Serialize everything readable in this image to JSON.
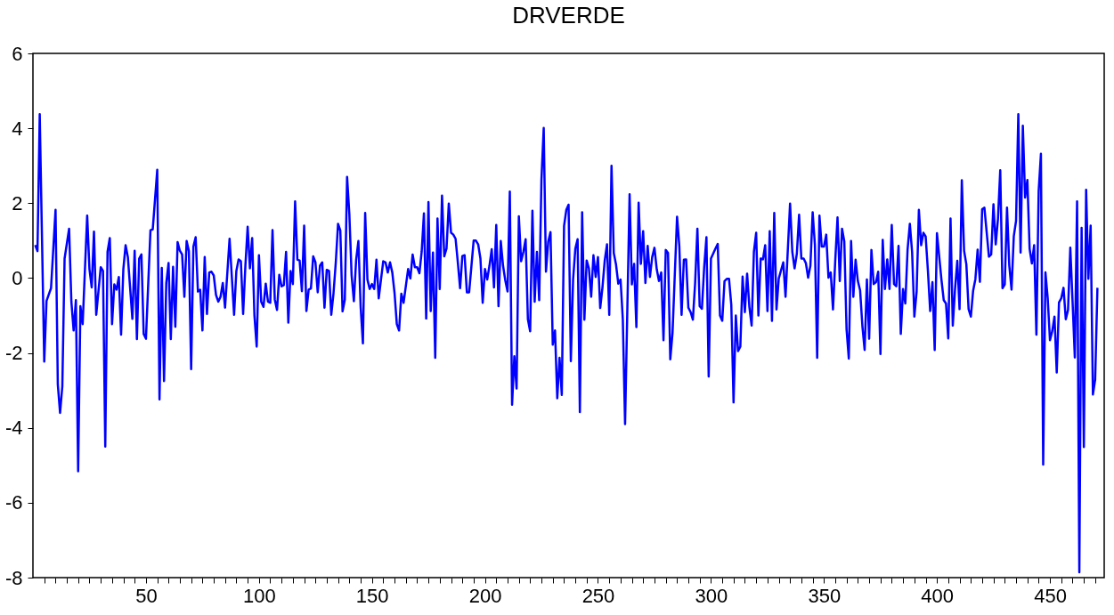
{
  "chart_data": {
    "type": "line",
    "title": "DRVERDE",
    "xlim": [
      0,
      474
    ],
    "ylim": [
      -8,
      6
    ],
    "yticks": [
      -8,
      -6,
      -4,
      -2,
      0,
      2,
      4,
      6
    ],
    "xticks": [
      {
        "value": 5,
        "label": null
      },
      {
        "value": 10,
        "label": null
      },
      {
        "value": 15,
        "label": null
      },
      {
        "value": 20,
        "label": null
      },
      {
        "value": 25,
        "label": null
      },
      {
        "value": 30,
        "label": null
      },
      {
        "value": 35,
        "label": null
      },
      {
        "value": 40,
        "label": null
      },
      {
        "value": 45,
        "label": null
      },
      50,
      {
        "value": 55,
        "label": null
      },
      {
        "value": 60,
        "label": null
      },
      {
        "value": 65,
        "label": null
      },
      {
        "value": 70,
        "label": null
      },
      {
        "value": 75,
        "label": null
      },
      {
        "value": 80,
        "label": null
      },
      {
        "value": 85,
        "label": null
      },
      {
        "value": 90,
        "label": null
      },
      {
        "value": 95,
        "label": null
      },
      100,
      {
        "value": 105,
        "label": null
      },
      {
        "value": 110,
        "label": null
      },
      {
        "value": 115,
        "label": null
      },
      {
        "value": 120,
        "label": null
      },
      {
        "value": 125,
        "label": null
      },
      {
        "value": 130,
        "label": null
      },
      {
        "value": 135,
        "label": null
      },
      {
        "value": 140,
        "label": null
      },
      {
        "value": 145,
        "label": null
      },
      150,
      {
        "value": 155,
        "label": null
      },
      {
        "value": 160,
        "label": null
      },
      {
        "value": 165,
        "label": null
      },
      {
        "value": 170,
        "label": null
      },
      {
        "value": 175,
        "label": null
      },
      {
        "value": 180,
        "label": null
      },
      {
        "value": 185,
        "label": null
      },
      {
        "value": 190,
        "label": null
      },
      {
        "value": 195,
        "label": null
      },
      200,
      {
        "value": 205,
        "label": null
      },
      {
        "value": 210,
        "label": null
      },
      {
        "value": 215,
        "label": null
      },
      {
        "value": 220,
        "label": null
      },
      {
        "value": 225,
        "label": null
      },
      {
        "value": 230,
        "label": null
      },
      {
        "value": 235,
        "label": null
      },
      {
        "value": 240,
        "label": null
      },
      {
        "value": 245,
        "label": null
      },
      250,
      {
        "value": 255,
        "label": null
      },
      {
        "value": 260,
        "label": null
      },
      {
        "value": 265,
        "label": null
      },
      {
        "value": 270,
        "label": null
      },
      {
        "value": 275,
        "label": null
      },
      {
        "value": 280,
        "label": null
      },
      {
        "value": 285,
        "label": null
      },
      {
        "value": 290,
        "label": null
      },
      {
        "value": 295,
        "label": null
      },
      300,
      {
        "value": 305,
        "label": null
      },
      {
        "value": 310,
        "label": null
      },
      {
        "value": 315,
        "label": null
      },
      {
        "value": 320,
        "label": null
      },
      {
        "value": 325,
        "label": null
      },
      {
        "value": 330,
        "label": null
      },
      {
        "value": 335,
        "label": null
      },
      {
        "value": 340,
        "label": null
      },
      {
        "value": 345,
        "label": null
      },
      350,
      {
        "value": 355,
        "label": null
      },
      {
        "value": 360,
        "label": null
      },
      {
        "value": 365,
        "label": null
      },
      {
        "value": 370,
        "label": null
      },
      {
        "value": 375,
        "label": null
      },
      {
        "value": 380,
        "label": null
      },
      {
        "value": 385,
        "label": null
      },
      {
        "value": 390,
        "label": null
      },
      {
        "value": 395,
        "label": null
      },
      400,
      {
        "value": 405,
        "label": null
      },
      {
        "value": 410,
        "label": null
      },
      {
        "value": 415,
        "label": null
      },
      {
        "value": 420,
        "label": null
      },
      {
        "value": 425,
        "label": null
      },
      {
        "value": 430,
        "label": null
      },
      {
        "value": 435,
        "label": null
      },
      {
        "value": 440,
        "label": null
      },
      {
        "value": 445,
        "label": null
      },
      450,
      {
        "value": 455,
        "label": null
      },
      {
        "value": 460,
        "label": null
      },
      {
        "value": 465,
        "label": null
      },
      {
        "value": 470,
        "label": null
      }
    ],
    "grid": false,
    "marker": "none",
    "line_style": "solid",
    "series": [
      {
        "color": "#0000ff",
        "x": [
          1,
          2,
          3,
          5,
          6,
          8,
          10,
          11,
          12,
          13,
          14,
          16,
          17,
          18,
          19,
          20,
          21,
          22,
          24,
          25,
          26,
          27,
          28,
          30,
          31,
          32,
          33,
          34,
          35,
          36,
          37,
          38,
          39,
          40,
          41,
          42,
          44,
          45,
          46,
          47,
          48,
          49,
          50,
          52,
          53,
          55,
          56,
          57,
          58,
          59,
          60,
          61,
          62,
          63,
          64,
          65,
          66,
          67,
          68,
          69,
          70,
          71,
          72,
          73,
          74,
          75,
          76,
          77,
          78,
          79,
          80,
          81,
          82,
          83,
          84,
          85,
          87,
          89,
          90,
          91,
          92,
          93,
          94,
          95,
          96,
          97,
          98,
          99,
          100,
          101,
          102,
          103,
          104,
          105,
          106,
          107,
          108,
          109,
          110,
          111,
          112,
          113,
          114,
          115,
          116,
          117,
          118,
          119,
          120,
          121,
          122,
          123,
          124,
          125,
          126,
          127,
          128,
          129,
          130,
          131,
          132,
          133,
          134,
          135,
          136,
          137,
          138,
          139,
          140,
          141,
          142,
          143,
          144,
          145,
          146,
          147,
          148,
          149,
          150,
          151,
          152,
          153,
          154,
          155,
          156,
          157,
          158,
          159,
          160,
          161,
          162,
          163,
          164,
          166,
          167,
          168,
          169,
          170,
          171,
          172,
          173,
          174,
          175,
          176,
          177,
          178,
          179,
          180,
          181,
          182,
          183,
          184,
          185,
          186,
          187,
          188,
          189,
          190,
          191,
          192,
          193,
          195,
          196,
          197,
          198,
          199,
          200,
          201,
          202,
          203,
          204,
          205,
          206,
          207,
          208,
          209,
          210,
          211,
          212,
          213,
          214,
          215,
          216,
          217,
          218,
          219,
          220,
          221,
          222,
          223,
          224,
          225,
          226,
          227,
          228,
          229,
          230,
          231,
          232,
          233,
          234,
          235,
          236,
          237,
          238,
          239,
          240,
          241,
          242,
          243,
          244,
          245,
          246,
          247,
          248,
          249,
          250,
          251,
          252,
          253,
          254,
          255,
          256,
          257,
          258,
          259,
          260,
          261,
          262,
          264,
          265,
          266,
          267,
          268,
          269,
          270,
          271,
          272,
          273,
          274,
          275,
          276,
          277,
          278,
          279,
          280,
          281,
          282,
          283,
          285,
          286,
          287,
          288,
          289,
          290,
          291,
          292,
          293,
          294,
          295,
          296,
          297,
          298,
          299,
          300,
          302,
          303,
          304,
          305,
          306,
          307,
          308,
          309,
          310,
          311,
          312,
          313,
          314,
          315,
          316,
          317,
          318,
          319,
          320,
          321,
          322,
          323,
          324,
          325,
          326,
          327,
          328,
          329,
          330,
          332,
          333,
          335,
          336,
          337,
          338,
          339,
          340,
          341,
          342,
          343,
          344,
          345,
          346,
          347,
          348,
          349,
          350,
          351,
          352,
          353,
          354,
          355,
          356,
          357,
          358,
          359,
          360,
          361,
          362,
          363,
          364,
          365,
          366,
          367,
          368,
          369,
          370,
          371,
          372,
          373,
          374,
          375,
          376,
          377,
          378,
          379,
          380,
          381,
          382,
          383,
          384,
          385,
          386,
          387,
          388,
          389,
          390,
          391,
          392,
          393,
          394,
          395,
          396,
          397,
          398,
          399,
          400,
          402,
          403,
          404,
          405,
          406,
          407,
          408,
          409,
          410,
          411,
          412,
          413,
          414,
          415,
          416,
          417,
          418,
          419,
          420,
          421,
          422,
          423,
          424,
          425,
          426,
          427,
          428,
          429,
          430,
          431,
          432,
          433,
          434,
          435,
          436,
          437,
          438,
          439,
          440,
          441,
          442,
          443,
          444,
          445,
          446,
          447,
          448,
          449,
          450,
          451,
          452,
          453,
          454,
          455,
          456,
          457,
          458,
          459,
          460,
          461,
          462,
          463,
          464,
          465,
          466,
          467,
          468,
          469,
          470,
          471
        ],
        "values": [
          0.88,
          0.72,
          4.38,
          -2.23,
          -0.61,
          -0.27,
          1.82,
          -2.84,
          -3.6,
          -2.89,
          0.52,
          1.32,
          -0.63,
          -1.4,
          -0.59,
          -5.16,
          -0.75,
          -1.23,
          1.67,
          0.24,
          -0.25,
          1.24,
          -0.98,
          0.29,
          0.19,
          -4.5,
          0.7,
          1.07,
          -1.23,
          -0.17,
          -0.31,
          0.03,
          -1.51,
          0.24,
          0.88,
          0.56,
          -1.09,
          0.73,
          -1.63,
          0.52,
          0.63,
          -1.49,
          -1.62,
          1.28,
          1.3,
          2.89,
          -3.24,
          0.27,
          -2.75,
          -0.13,
          0.4,
          -1.63,
          0.3,
          -1.3,
          0.96,
          0.73,
          0.63,
          -0.5,
          0.99,
          0.72,
          -2.43,
          0.84,
          1.09,
          -0.36,
          -0.31,
          -1.4,
          0.56,
          -0.96,
          0.15,
          0.17,
          0.07,
          -0.45,
          -0.63,
          -0.5,
          -0.13,
          -0.79,
          1.05,
          -0.98,
          0.19,
          0.5,
          0.45,
          -0.96,
          0.33,
          1.37,
          0.26,
          1.07,
          -1.0,
          -1.83,
          0.61,
          -0.63,
          -0.77,
          -0.15,
          -0.63,
          -0.66,
          1.28,
          -0.57,
          -0.85,
          0.09,
          -0.22,
          -0.19,
          0.7,
          -1.19,
          0.19,
          -0.16,
          2.05,
          0.49,
          0.47,
          -0.35,
          1.4,
          -0.88,
          -0.31,
          -0.28,
          0.58,
          0.42,
          -0.38,
          0.33,
          0.42,
          -0.79,
          0.22,
          0.19,
          -0.98,
          -0.4,
          0.42,
          1.45,
          1.27,
          -0.89,
          -0.57,
          2.7,
          1.71,
          0.07,
          -0.62,
          0.49,
          0.99,
          -0.77,
          -1.74,
          1.74,
          -0.04,
          -0.29,
          -0.16,
          -0.29,
          0.49,
          -0.54,
          -0.04,
          0.45,
          0.42,
          0.15,
          0.42,
          0.15,
          -0.4,
          -1.23,
          -1.4,
          -0.42,
          -0.66,
          0.24,
          -0.01,
          0.63,
          0.29,
          0.29,
          0.13,
          0.7,
          1.73,
          -1.08,
          2.03,
          -0.88,
          0.68,
          -2.13,
          1.59,
          -0.29,
          2.2,
          0.58,
          0.79,
          1.99,
          1.21,
          1.16,
          1.05,
          0.42,
          -0.27,
          0.59,
          0.61,
          -0.38,
          -0.38,
          1.0,
          1.0,
          0.9,
          0.52,
          -0.66,
          0.24,
          -0.04,
          0.33,
          0.77,
          -0.25,
          1.42,
          -0.75,
          0.99,
          0.33,
          -0.06,
          -0.36,
          2.31,
          -3.38,
          -2.09,
          -2.95,
          1.65,
          0.45,
          0.7,
          1.04,
          -1.1,
          -1.42,
          1.8,
          -0.63,
          0.7,
          -0.59,
          2.63,
          4.01,
          0.17,
          0.97,
          1.23,
          -1.78,
          -1.4,
          -3.21,
          -2.13,
          -3.12,
          1.39,
          1.82,
          1.96,
          -2.22,
          -0.04,
          0.79,
          1.04,
          -3.58,
          1.76,
          -1.11,
          0.47,
          0.26,
          -0.5,
          0.61,
          0.03,
          0.56,
          -0.8,
          -0.25,
          0.47,
          0.9,
          -0.98,
          3.0,
          0.67,
          0.36,
          -0.15,
          -0.04,
          -1.1,
          -3.9,
          2.24,
          -0.17,
          0.38,
          -1.31,
          2.01,
          0.38,
          1.25,
          -0.13,
          0.86,
          0.03,
          0.56,
          0.81,
          0.24,
          -0.08,
          0.15,
          -1.66,
          0.75,
          0.67,
          -2.17,
          -1.46,
          1.64,
          0.86,
          -0.98,
          0.49,
          0.5,
          -0.79,
          -0.91,
          -1.11,
          -0.13,
          1.32,
          -0.75,
          -0.82,
          0.29,
          1.09,
          -2.63,
          0.52,
          0.79,
          0.91,
          -1.0,
          -1.14,
          -0.08,
          -0.02,
          -0.02,
          -0.72,
          -3.32,
          -1.0,
          -1.95,
          -1.83,
          0.04,
          -0.91,
          0.12,
          -0.77,
          -1.27,
          0.7,
          1.21,
          -1.0,
          0.52,
          0.5,
          0.88,
          -0.88,
          1.25,
          -1.14,
          1.74,
          -0.84,
          -0.01,
          0.42,
          -0.5,
          1.99,
          0.7,
          0.26,
          0.65,
          1.69,
          0.52,
          0.52,
          0.4,
          0.01,
          0.33,
          1.76,
          0.88,
          -2.13,
          1.67,
          0.84,
          0.84,
          1.16,
          0.01,
          0.15,
          -0.84,
          0.47,
          1.62,
          -0.08,
          1.32,
          0.98,
          -1.37,
          -2.15,
          0.99,
          -0.5,
          0.49,
          -0.08,
          -0.33,
          -1.28,
          -1.92,
          -0.04,
          -1.62,
          0.75,
          -0.16,
          -0.11,
          0.17,
          -2.03,
          1.02,
          -0.29,
          0.5,
          -0.29,
          1.42,
          -0.16,
          -0.22,
          0.86,
          -1.49,
          -0.29,
          -0.68,
          0.76,
          1.45,
          0.7,
          -1.03,
          -0.36,
          1.82,
          0.88,
          1.21,
          1.11,
          0.19,
          -0.88,
          -0.11,
          -1.92,
          1.2,
          -0.05,
          -0.59,
          -0.68,
          -1.61,
          1.59,
          -1.27,
          -0.29,
          0.46,
          -0.83,
          2.61,
          0.73,
          0.37,
          -0.83,
          -1.03,
          -0.34,
          -0.03,
          0.76,
          -0.1,
          1.84,
          1.88,
          1.22,
          0.57,
          0.63,
          1.97,
          0.9,
          1.59,
          2.88,
          -0.27,
          -0.17,
          1.88,
          0.34,
          -0.31,
          1.12,
          1.53,
          4.38,
          0.68,
          4.07,
          2.15,
          2.62,
          0.78,
          0.39,
          0.88,
          -1.51,
          2.32,
          3.32,
          -4.98,
          0.15,
          -0.54,
          -1.66,
          -1.42,
          -1.03,
          -2.52,
          -0.65,
          -0.54,
          -0.26,
          -1.1,
          -0.85,
          0.81,
          -0.63,
          -2.12,
          2.05,
          -7.86,
          1.34,
          -4.51,
          2.36,
          -0.02,
          1.4,
          -3.11,
          -2.71,
          -0.26
        ]
      }
    ]
  }
}
